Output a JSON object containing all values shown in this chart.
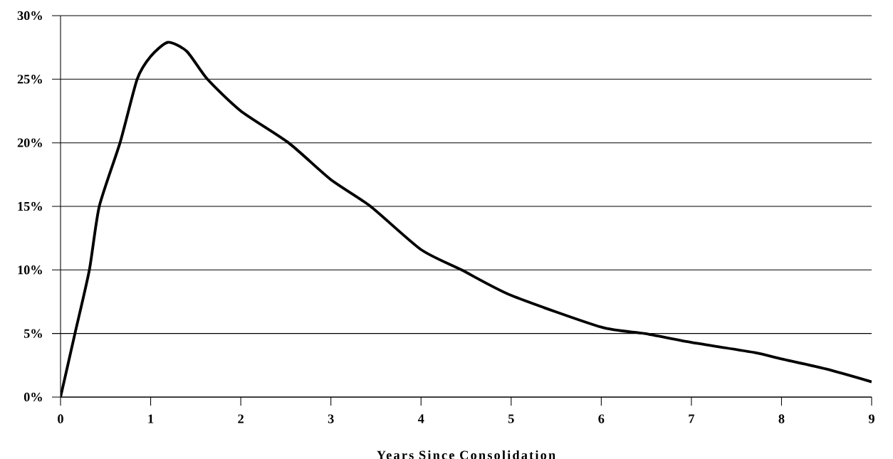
{
  "chart_data": {
    "type": "line",
    "xlabel": "Years Since Consolidation",
    "x": [
      0,
      0.16,
      0.32,
      0.43,
      0.66,
      0.85,
      1.0,
      1.19,
      1.4,
      1.63,
      2.0,
      2.53,
      3.0,
      3.44,
      4.0,
      4.45,
      5.0,
      6.0,
      6.48,
      7.0,
      7.7,
      8.0,
      8.5,
      9.0
    ],
    "values": [
      0,
      5,
      10,
      15,
      20,
      25,
      26.8,
      27.9,
      27.2,
      25,
      22.5,
      20,
      17.1,
      15,
      11.6,
      10,
      8,
      5.5,
      5,
      4.3,
      3.5,
      3.0,
      2.2,
      1.2
    ],
    "color": "#000000",
    "marker": "none",
    "line_style": "solid",
    "grid": "y",
    "xlim": [
      0,
      9
    ],
    "xticks": [
      0,
      1,
      2,
      3,
      4,
      5,
      6,
      7,
      8,
      9
    ],
    "ylim": [
      0,
      30
    ],
    "yticks": [
      {
        "value": 0,
        "label": "0%"
      },
      {
        "value": 5,
        "label": "5%"
      },
      {
        "value": 10,
        "label": "10%"
      },
      {
        "value": 15,
        "label": "15%"
      },
      {
        "value": 20,
        "label": "20%"
      },
      {
        "value": 25,
        "label": "25%"
      },
      {
        "value": 30,
        "label": "30%"
      }
    ]
  }
}
